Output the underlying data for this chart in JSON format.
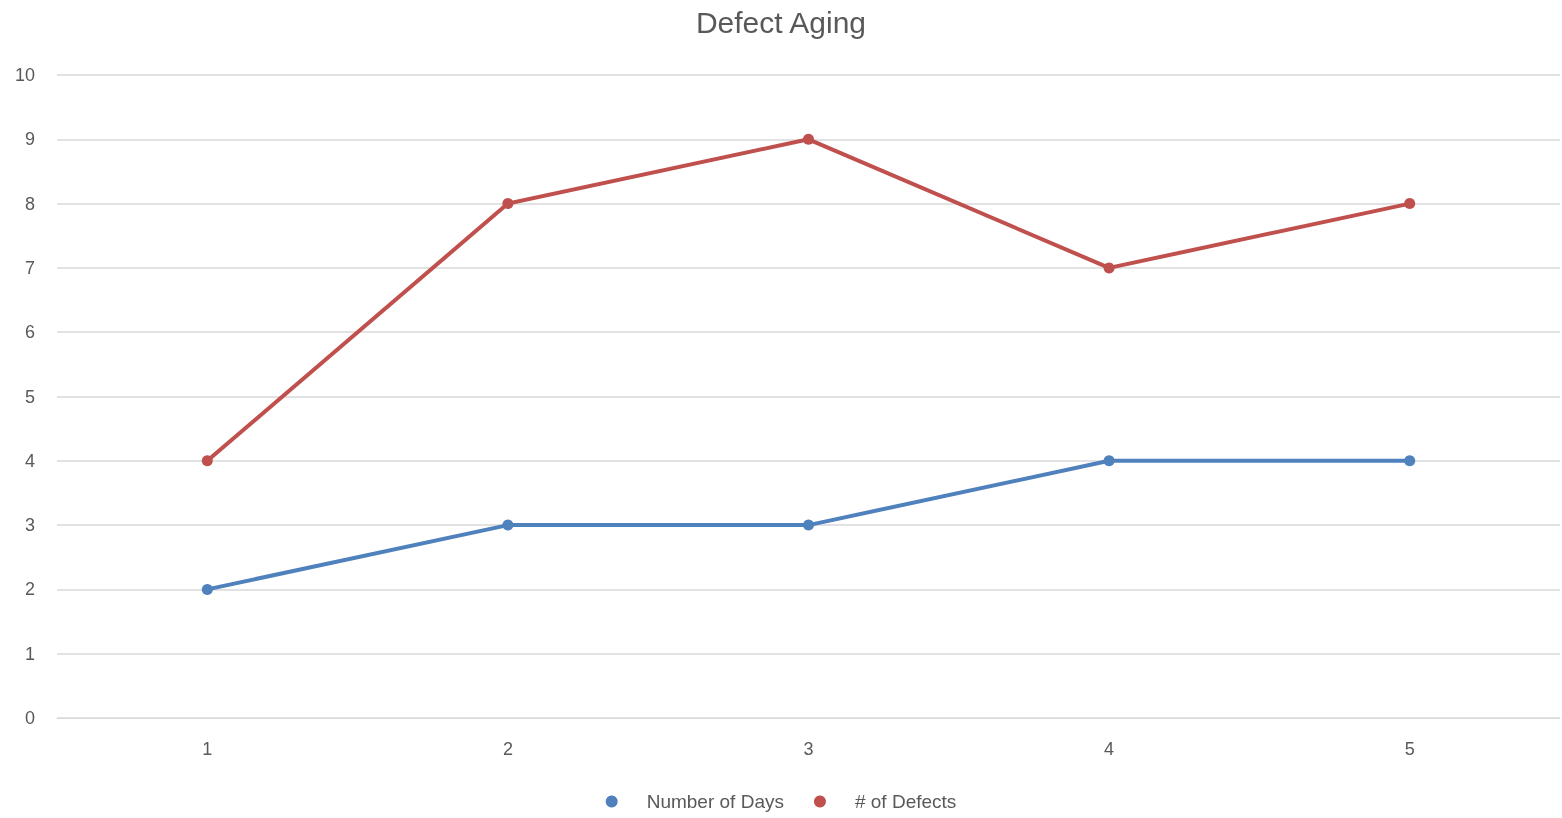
{
  "chart_data": {
    "type": "line",
    "title": "Defect Aging",
    "categories": [
      "1",
      "2",
      "3",
      "4",
      "5"
    ],
    "series": [
      {
        "name": "Number of Days",
        "color": "#4f81bd",
        "values": [
          2,
          3,
          3,
          4,
          4
        ]
      },
      {
        "name": "# of Defects",
        "color": "#c0504d",
        "values": [
          4,
          8,
          9,
          7,
          8
        ]
      }
    ],
    "ylim": [
      0,
      10
    ],
    "yticks": [
      0,
      1,
      2,
      3,
      4,
      5,
      6,
      7,
      8,
      9,
      10
    ],
    "grid": "y",
    "legend": "bottom",
    "marker": "circle",
    "line_style": "solid"
  }
}
